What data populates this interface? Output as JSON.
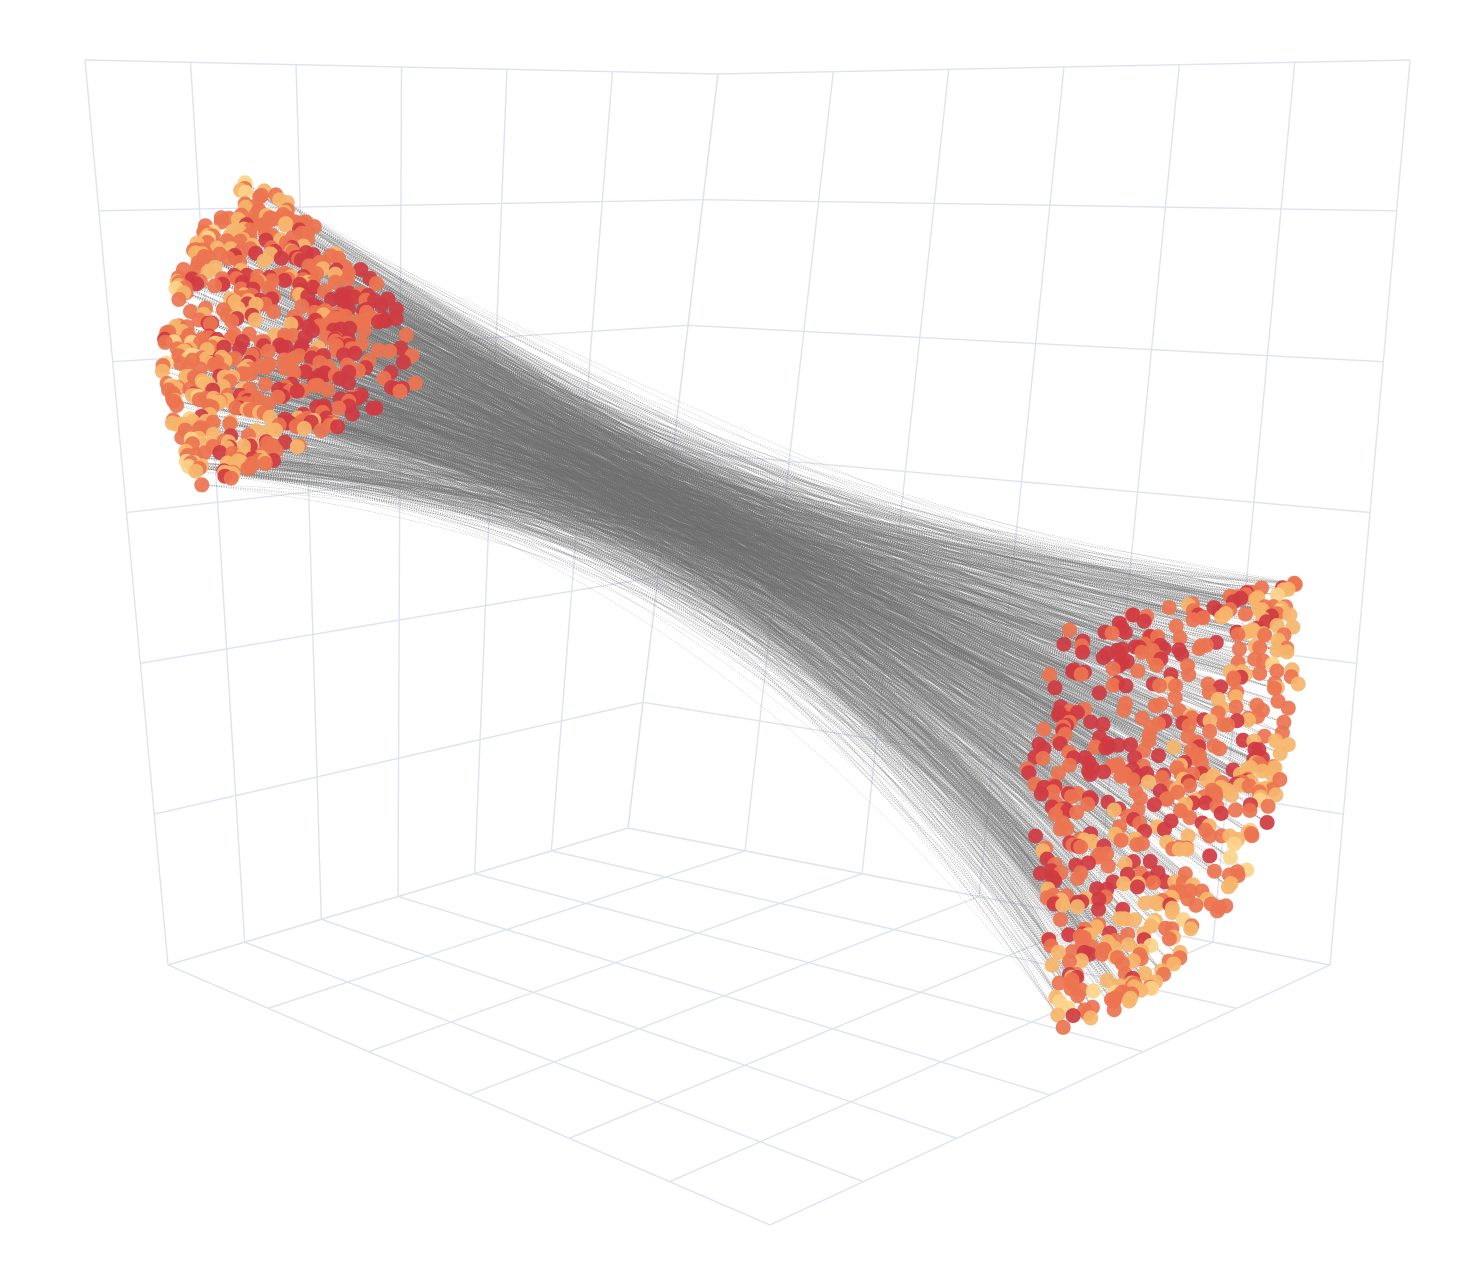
{
  "chart_data": {
    "type": "scatter",
    "title": "",
    "xlabel": "",
    "ylabel": "",
    "zlabel": "",
    "grid": true,
    "legend": "none",
    "colors": {
      "grid": "#dfe3ef",
      "edges": "#6e6e6e",
      "marker_dark": "#cf3b42",
      "marker_mid": "#ec7450",
      "marker_light": "#f6b56c",
      "marker_pale": "#fbd48a",
      "background": "#ffffff"
    },
    "series": [
      {
        "name": "",
        "kind": "points-ends",
        "point_count": 1200
      },
      {
        "name": "",
        "kind": "connecting-lines",
        "line_count": 2400
      }
    ]
  }
}
